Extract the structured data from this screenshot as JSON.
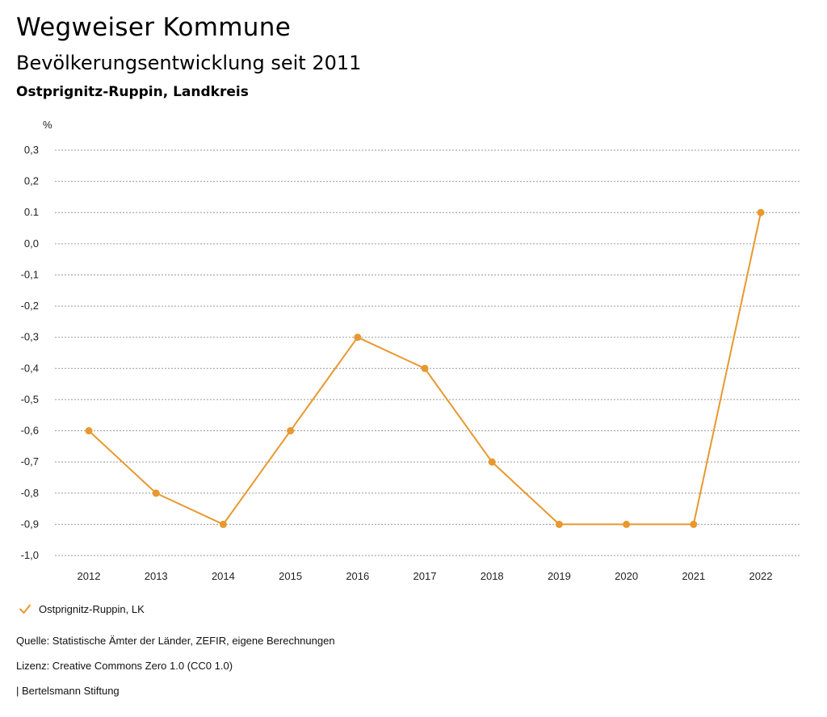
{
  "header": {
    "title": "Wegweiser Kommune",
    "subtitle": "Bevölkerungsentwicklung seit 2011",
    "region": "Ostprignitz-Ruppin, Landkreis"
  },
  "chart_data": {
    "type": "line",
    "unit_label": "%",
    "x": [
      "2012",
      "2013",
      "2014",
      "2015",
      "2016",
      "2017",
      "2018",
      "2019",
      "2020",
      "2021",
      "2022"
    ],
    "series": [
      {
        "name": "Ostprignitz-Ruppin, LK",
        "color": "#E8982E",
        "values": [
          -0.6,
          -0.8,
          -0.9,
          -0.6,
          -0.3,
          -0.4,
          -0.7,
          -0.9,
          -0.9,
          -0.9,
          0.1
        ]
      }
    ],
    "ylim": [
      -1.0,
      0.3
    ],
    "yticks": [
      0.3,
      0.2,
      0.1,
      0.0,
      -0.1,
      -0.2,
      -0.3,
      -0.4,
      -0.5,
      -0.6,
      -0.7,
      -0.8,
      -0.9,
      -1.0
    ],
    "ytick_labels": [
      "0,3",
      "0,2",
      "0.1",
      "0,0",
      "-0,1",
      "-0,2",
      "-0,3",
      "-0,4",
      "-0,5",
      "-0,6",
      "-0,7",
      "-0,8",
      "-0,9",
      "-1,0"
    ],
    "grid": true,
    "grid_style": "dotted",
    "legend_position": "bottom-left"
  },
  "footer": {
    "source": "Quelle: Statistische Ämter der Länder, ZEFIR, eigene Berechnungen",
    "license": "Lizenz: Creative Commons Zero 1.0 (CC0 1.0)",
    "publisher": "| Bertelsmann Stiftung"
  },
  "icons": {
    "legend_marker": "checkmark-icon"
  }
}
